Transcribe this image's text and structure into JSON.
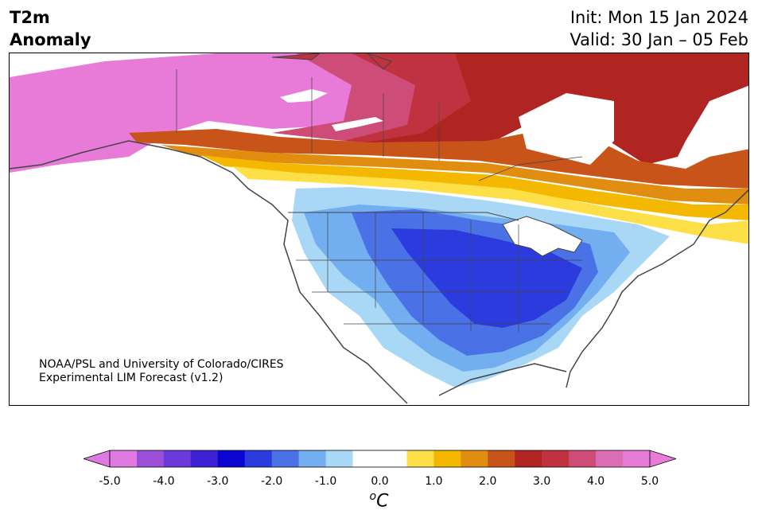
{
  "title": {
    "variable": "T2m",
    "field": "Anomaly",
    "init": "Init: Mon 15 Jan 2024",
    "valid": "Valid: 30 Jan – 05 Feb"
  },
  "credit": {
    "line1": "NOAA/PSL and University of Colorado/CIRES",
    "line2": "Experimental LIM Forecast (v1.2)"
  },
  "colorbar": {
    "unit_base": "C",
    "unit_sup": "o",
    "ticks": [
      "-5.0",
      "-4.0",
      "-3.0",
      "-2.0",
      "-1.0",
      "0.0",
      "1.0",
      "2.0",
      "3.0",
      "4.0",
      "5.0"
    ],
    "colors": [
      "#df7ae0",
      "#9b4fd8",
      "#6c3adb",
      "#3c22d4",
      "#0a05d0",
      "#2b3bde",
      "#4a72e6",
      "#72aef0",
      "#a9d8f7",
      "#ffffff",
      "#ffffff",
      "#fde047",
      "#f4b800",
      "#e08d10",
      "#c8541a",
      "#b02422",
      "#c03240",
      "#cd4d78",
      "#db6fb6",
      "#e87ad8"
    ],
    "min_color": "#df7ae0",
    "max_color": "#e87ad8"
  },
  "map": {
    "projection": "North America",
    "colors": {
      "pink": "#e87ad8",
      "pink2": "#db6fb6",
      "rose": "#cd4d78",
      "crimson": "#c03240",
      "red": "#b02422",
      "orange_dark": "#c8541a",
      "orange": "#e08d10",
      "amber": "#f4b800",
      "yellow": "#fde047",
      "blue_light": "#a9d8f7",
      "blue_l2": "#72aef0",
      "blue_mid": "#4a72e6",
      "blue_dark": "#2b3bde",
      "border": "#444444"
    }
  }
}
